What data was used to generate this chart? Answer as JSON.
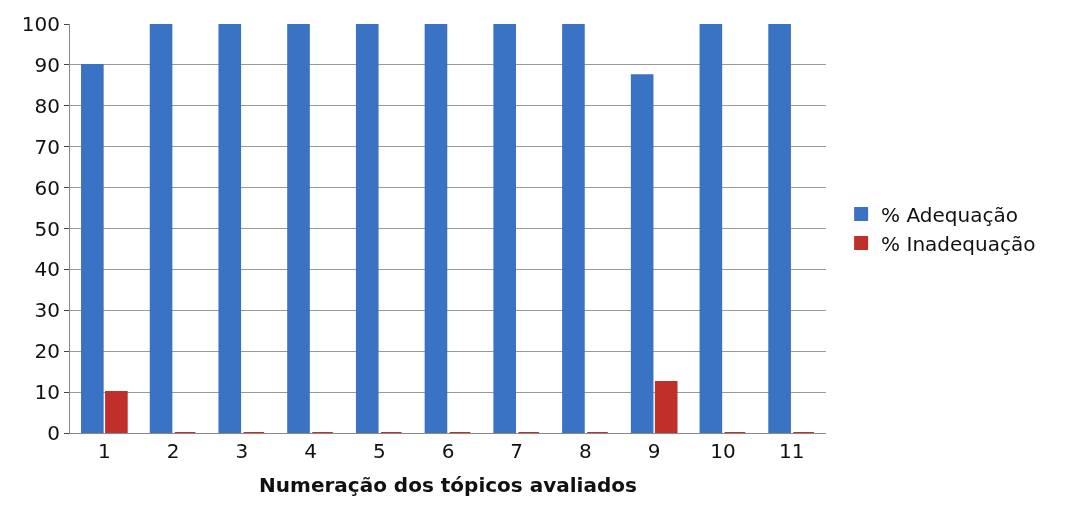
{
  "chart_data": {
    "type": "bar",
    "xlabel": "Numeração dos tópicos avaliados",
    "categories": [
      "1",
      "2",
      "3",
      "4",
      "5",
      "6",
      "7",
      "8",
      "9",
      "10",
      "11"
    ],
    "series": [
      {
        "name": "% Adequação",
        "color": "#3a72c4",
        "values": [
          90,
          100,
          100,
          100,
          100,
          100,
          100,
          100,
          87.5,
          100,
          100
        ]
      },
      {
        "name": "% Inadequação",
        "color": "#c0302a",
        "values": [
          10,
          0,
          0,
          0,
          0,
          0,
          0,
          0,
          12.5,
          0,
          0
        ]
      }
    ],
    "ylim": [
      0,
      100
    ],
    "yticks": [
      0,
      10,
      20,
      30,
      40,
      50,
      60,
      70,
      80,
      90,
      100
    ],
    "grid": "y",
    "legend": "right"
  }
}
